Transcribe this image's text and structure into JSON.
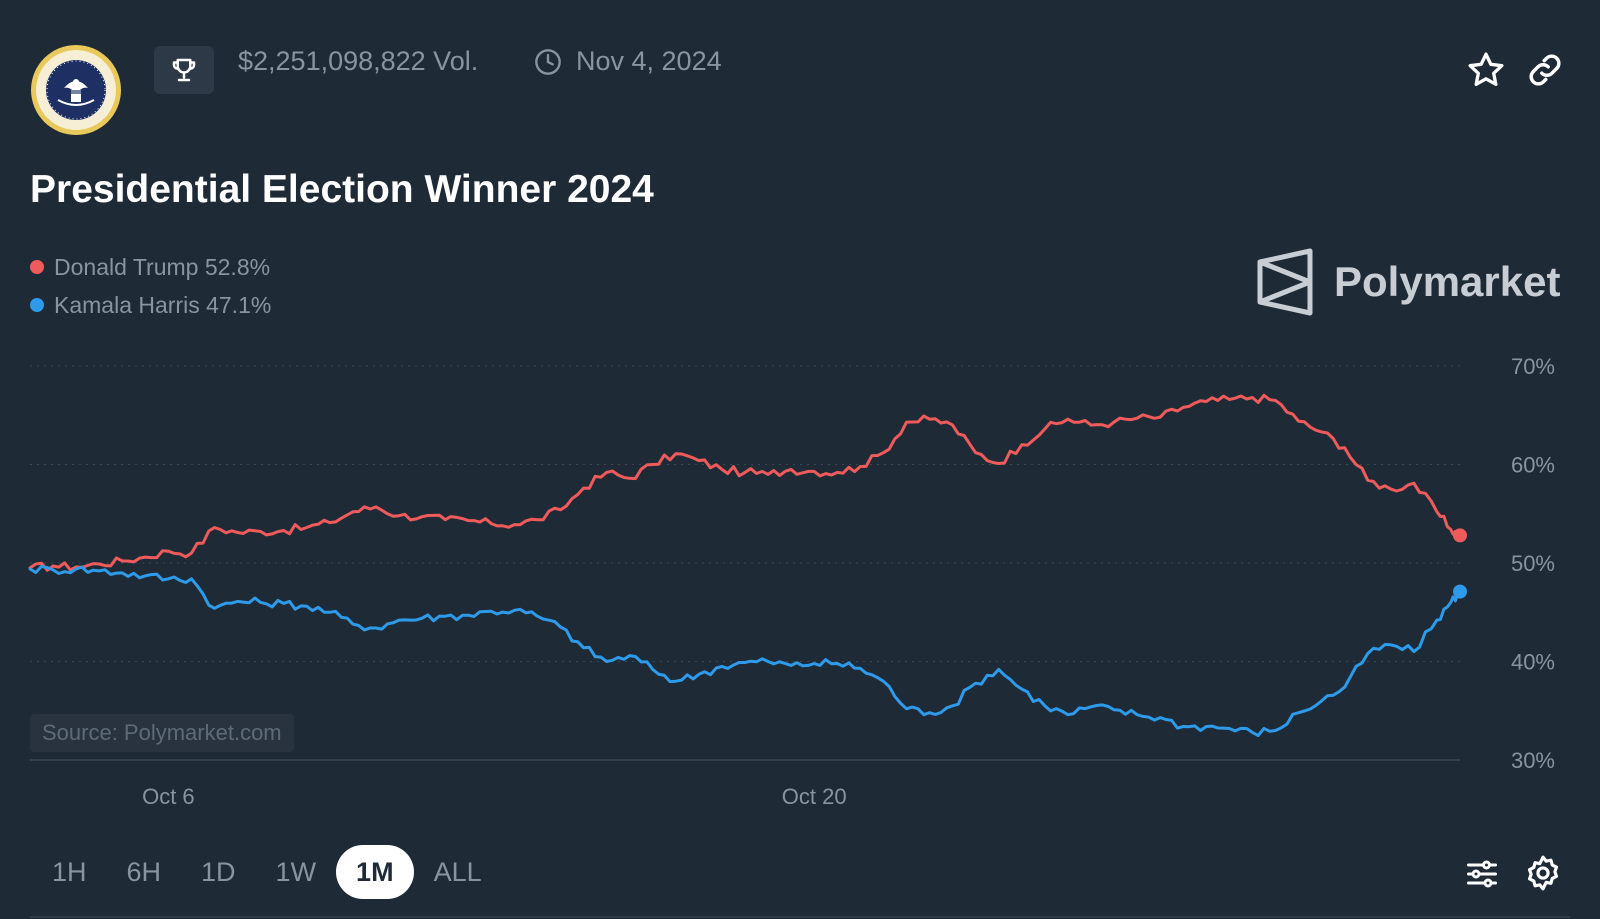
{
  "header": {
    "volume": "$2,251,098,822 Vol.",
    "date": "Nov 4, 2024"
  },
  "market": {
    "title": "Presidential Election Winner 2024"
  },
  "legend": [
    {
      "label": "Donald Trump 52.8%",
      "color": "#ef5b5b"
    },
    {
      "label": "Kamala Harris 47.1%",
      "color": "#2e9bea"
    }
  ],
  "brand": {
    "name": "Polymarket"
  },
  "source": "Source: Polymarket.com",
  "time_tabs": [
    {
      "label": "1H",
      "active": false
    },
    {
      "label": "6H",
      "active": false
    },
    {
      "label": "1D",
      "active": false
    },
    {
      "label": "1W",
      "active": false
    },
    {
      "label": "1M",
      "active": true
    },
    {
      "label": "ALL",
      "active": false
    }
  ],
  "chart_data": {
    "type": "line",
    "ylim": [
      30,
      70
    ],
    "ylabels": [
      "70%",
      "60%",
      "50%",
      "40%",
      "30%"
    ],
    "xlabels": [
      {
        "label": "Oct 6",
        "day": 6
      },
      {
        "label": "Oct 20",
        "day": 20
      }
    ],
    "xlim": [
      3.0,
      34.0
    ],
    "grid": "horizontal-dotted",
    "series": [
      {
        "name": "Donald Trump",
        "color": "#ef5b5b",
        "x": [
          3.0,
          3.5,
          4.0,
          4.5,
          5.0,
          5.5,
          6.0,
          6.5,
          7.0,
          7.5,
          8.0,
          8.5,
          9.0,
          9.5,
          10.0,
          10.5,
          11.0,
          11.5,
          12.0,
          12.5,
          13.0,
          13.5,
          14.0,
          14.5,
          15.0,
          15.5,
          16.0,
          16.5,
          17.0,
          17.5,
          18.0,
          18.5,
          19.0,
          19.5,
          20.0,
          20.5,
          21.0,
          21.5,
          22.0,
          22.5,
          23.0,
          23.5,
          24.0,
          24.5,
          25.0,
          25.5,
          26.0,
          26.5,
          27.0,
          27.5,
          28.0,
          28.5,
          29.0,
          29.5,
          30.0,
          30.5,
          31.0,
          31.5,
          32.0,
          32.5,
          33.0,
          33.5,
          33.8,
          34.0
        ],
        "values": [
          49.5,
          49.7,
          49.6,
          49.9,
          50.2,
          50.6,
          51.2,
          51.0,
          53.6,
          53.1,
          53.2,
          53.3,
          53.6,
          54.1,
          55.2,
          55.7,
          54.8,
          54.7,
          54.4,
          54.3,
          54.0,
          53.9,
          54.4,
          55.4,
          57.6,
          59.2,
          58.6,
          60.0,
          61.1,
          60.4,
          59.5,
          59.2,
          59.0,
          59.5,
          59.3,
          59.2,
          59.8,
          61.2,
          64.3,
          64.6,
          64.0,
          61.2,
          60.1,
          62.0,
          63.6,
          64.6,
          64.0,
          64.3,
          64.7,
          64.8,
          65.8,
          66.4,
          66.6,
          66.8,
          66.5,
          64.4,
          63.3,
          61.7,
          58.4,
          57.5,
          58.1,
          55.2,
          53.4,
          52.8
        ]
      },
      {
        "name": "Kamala Harris",
        "color": "#2e9bea",
        "x": [
          3.0,
          3.5,
          4.0,
          4.5,
          5.0,
          5.5,
          6.0,
          6.5,
          7.0,
          7.5,
          8.0,
          8.5,
          9.0,
          9.5,
          10.0,
          10.5,
          11.0,
          11.5,
          12.0,
          12.5,
          13.0,
          13.5,
          14.0,
          14.5,
          15.0,
          15.5,
          16.0,
          16.5,
          17.0,
          17.5,
          18.0,
          18.5,
          19.0,
          19.5,
          20.0,
          20.5,
          21.0,
          21.5,
          22.0,
          22.5,
          23.0,
          23.5,
          24.0,
          24.5,
          25.0,
          25.5,
          26.0,
          26.5,
          27.0,
          27.5,
          28.0,
          28.5,
          29.0,
          29.5,
          30.0,
          30.5,
          31.0,
          31.5,
          32.0,
          32.5,
          33.0,
          33.5,
          33.8,
          34.0
        ],
        "values": [
          49.4,
          49.3,
          49.4,
          49.2,
          49.0,
          48.7,
          48.4,
          48.4,
          45.4,
          46.1,
          46.0,
          45.9,
          45.6,
          45.0,
          43.8,
          43.4,
          44.2,
          44.4,
          44.6,
          44.7,
          45.1,
          45.2,
          44.6,
          43.5,
          41.4,
          40.0,
          40.6,
          39.2,
          38.0,
          38.7,
          39.5,
          39.9,
          40.0,
          39.6,
          39.8,
          39.8,
          39.3,
          38.0,
          35.2,
          34.8,
          35.5,
          37.8,
          39.2,
          37.2,
          35.5,
          34.6,
          35.4,
          35.1,
          34.6,
          34.3,
          33.4,
          33.4,
          33.2,
          32.8,
          33.0,
          34.8,
          36.0,
          37.4,
          40.8,
          41.7,
          41.0,
          44.2,
          46.0,
          47.1
        ]
      }
    ]
  }
}
